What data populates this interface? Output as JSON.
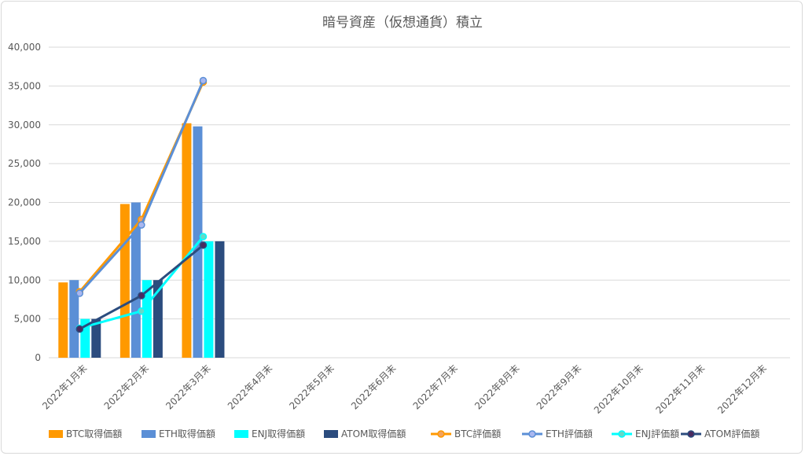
{
  "chart_data": {
    "type": "bar",
    "title": "暗号資産（仮想通貨）積立",
    "categories": [
      "2022年1月末",
      "2022年2月末",
      "2022年3月末",
      "2022年4月末",
      "2022年5月末",
      "2022年6月末",
      "2022年7月末",
      "2022年8月末",
      "2022年9月末",
      "2022年10月末",
      "2022年11月末",
      "2022年12月末"
    ],
    "ylim": [
      0,
      40000
    ],
    "yticks": [
      0,
      5000,
      10000,
      15000,
      20000,
      25000,
      30000,
      35000,
      40000
    ],
    "ytick_labels": [
      "0",
      "5,000",
      "10,000",
      "15,000",
      "20,000",
      "25,000",
      "30,000",
      "35,000",
      "40,000"
    ],
    "grid": true,
    "legend_position": "bottom",
    "bar_series": [
      {
        "name": "BTC取得価額",
        "color": "#ff9900",
        "values": [
          9700,
          19800,
          30200,
          null,
          null,
          null,
          null,
          null,
          null,
          null,
          null,
          null
        ]
      },
      {
        "name": "ETH取得価額",
        "color": "#5b8fd6",
        "values": [
          10000,
          20000,
          29800,
          null,
          null,
          null,
          null,
          null,
          null,
          null,
          null,
          null
        ]
      },
      {
        "name": "ENJ取得価額",
        "color": "#00ffff",
        "values": [
          5000,
          10000,
          15000,
          null,
          null,
          null,
          null,
          null,
          null,
          null,
          null,
          null
        ]
      },
      {
        "name": "ATOM取得価額",
        "color": "#2b4c7e",
        "values": [
          5000,
          10000,
          15000,
          null,
          null,
          null,
          null,
          null,
          null,
          null,
          null,
          null
        ]
      }
    ],
    "line_series": [
      {
        "name": "BTC評価額",
        "color": "#ff9900",
        "marker_fill": "#f4a35c",
        "values": [
          8500,
          17800,
          35500,
          null,
          null,
          null,
          null,
          null,
          null,
          null,
          null,
          null
        ]
      },
      {
        "name": "ETH評価額",
        "color": "#5b8fd6",
        "marker_fill": "#a9b7f0",
        "values": [
          8300,
          17100,
          35700,
          null,
          null,
          null,
          null,
          null,
          null,
          null,
          null,
          null
        ]
      },
      {
        "name": "ENJ評価額",
        "color": "#00ffff",
        "marker_fill": "#66d9c8",
        "values": [
          3800,
          6000,
          15600,
          null,
          null,
          null,
          null,
          null,
          null,
          null,
          null,
          null
        ]
      },
      {
        "name": "ATOM評価額",
        "color": "#2b4c7e",
        "marker_fill": "#4b2a5e",
        "values": [
          3700,
          8000,
          14500,
          null,
          null,
          null,
          null,
          null,
          null,
          null,
          null,
          null
        ]
      }
    ]
  }
}
